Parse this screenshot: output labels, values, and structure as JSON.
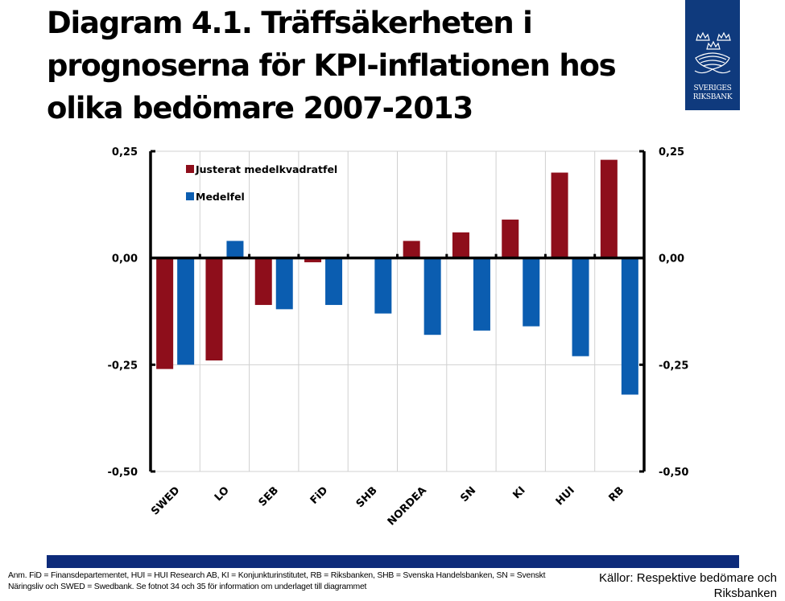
{
  "title": "Diagram 4.1. Träffsäkerheten i prognoserna för KPI-inflationen hos olika bedömare 2007-2013",
  "logo": {
    "line1": "SVERIGES",
    "line2": "RIKSBANK"
  },
  "colors": {
    "series1": "#8e0e1b",
    "series2": "#0b5db0",
    "band": "#0d2b7a",
    "logo_bg": "#0f3a7d",
    "grid": "#d0d0d0"
  },
  "chart_data": {
    "type": "bar",
    "title": "Diagram 4.1. Träffsäkerheten i prognoserna för KPI-inflationen hos olika bedömare 2007-2013",
    "xlabel": "",
    "ylabel": "",
    "categories": [
      "SWED",
      "LO",
      "SEB",
      "FiD",
      "SHB",
      "NORDEA",
      "SN",
      "KI",
      "HUI",
      "RB"
    ],
    "series": [
      {
        "name": "Justerat medelkvadratfel",
        "color": "#8e0e1b",
        "values": [
          -0.26,
          -0.24,
          -0.11,
          -0.01,
          0.0,
          0.04,
          0.06,
          0.09,
          0.2,
          0.23
        ]
      },
      {
        "name": "Medelfel",
        "color": "#0b5db0",
        "values": [
          -0.25,
          0.04,
          -0.12,
          -0.11,
          -0.13,
          -0.18,
          -0.17,
          -0.16,
          -0.23,
          -0.32
        ]
      }
    ],
    "ylim": [
      -0.5,
      0.25
    ],
    "yticks": [
      0.25,
      0.0,
      -0.25,
      -0.5
    ],
    "ytick_labels_left": [
      "0,25",
      "0,00",
      "-0,25",
      "-0,50"
    ],
    "ytick_labels_right": [
      "0,25",
      "0,00",
      "-0,25",
      "-0,50"
    ],
    "grid": true,
    "legend_position": "top-left"
  },
  "footer": {
    "note": "Anm. FiD = Finansdepartementet, HUI = HUI Research AB, KI = Konjunkturinstitutet, RB = Riksbanken, SHB = Svenska Handelsbanken, SN = Svenskt Näringsliv och SWED = Swedbank. Se fotnot 34 och 35 för information om underlaget till diagrammet",
    "source": "Källor: Respektive bedömare och Riksbanken"
  }
}
